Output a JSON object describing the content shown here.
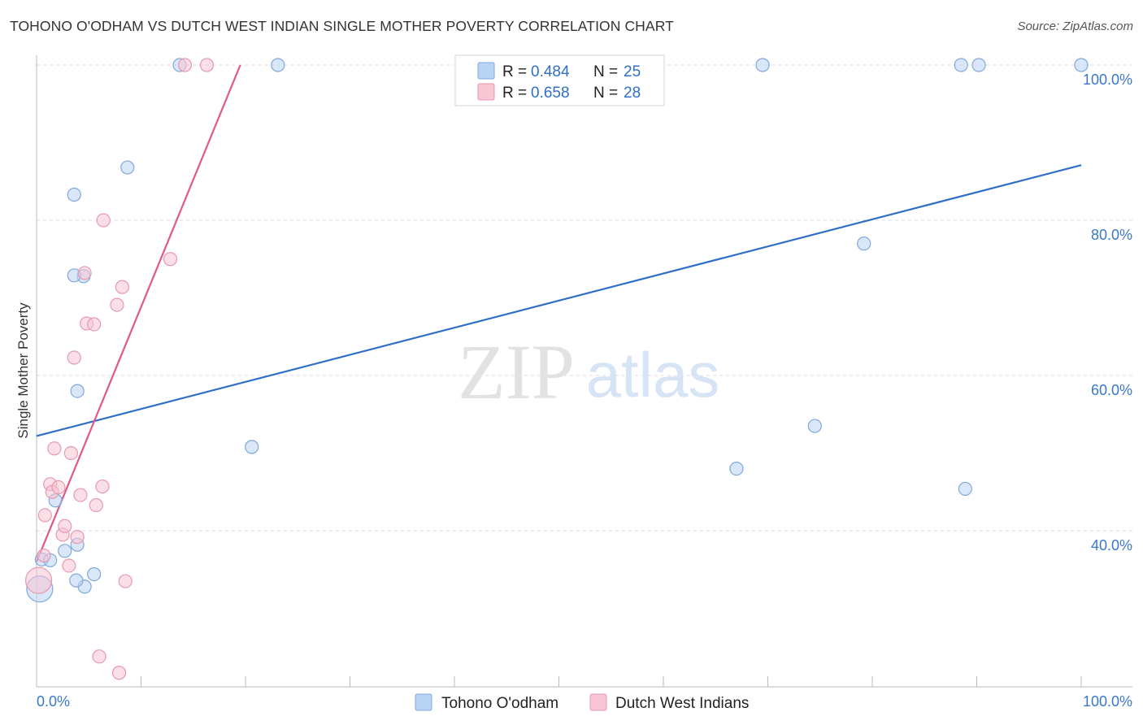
{
  "title": "TOHONO O'ODHAM VS DUTCH WEST INDIAN SINGLE MOTHER POVERTY CORRELATION CHART",
  "source": "Source: ZipAtlas.com",
  "watermark": {
    "zip": "ZIP",
    "atlas": "atlas"
  },
  "colors": {
    "blue_fill": "#b9d3f3",
    "blue_stroke": "#7fa8dc",
    "blue_line": "#2f6fc5",
    "pink_fill": "#f7c5d3",
    "pink_stroke": "#e799b0",
    "pink_line": "#e0588a",
    "grid": "#dddddd",
    "axis": "#bbbbbb",
    "tick_text": "#3a78c8"
  },
  "chart_data": {
    "type": "scatter",
    "title": "TOHONO O'ODHAM VS DUTCH WEST INDIAN SINGLE MOTHER POVERTY CORRELATION CHART",
    "xlabel": "",
    "ylabel": "Single Mother Poverty",
    "xlim": [
      0,
      100
    ],
    "ylim": [
      20,
      102
    ],
    "x_tick_labels": [
      "0.0%",
      "100.0%"
    ],
    "y_ticks": [
      40,
      60,
      80,
      100
    ],
    "y_tick_labels": [
      "40.0%",
      "60.0%",
      "80.0%",
      "100.0%"
    ],
    "legend": [
      {
        "name": "Tohono O'odham",
        "r_label": "R =",
        "r": "0.484",
        "n_label": "N =",
        "n": "25"
      },
      {
        "name": "Dutch West Indians",
        "r_label": "R =",
        "r": "0.658",
        "n_label": "N =",
        "n": "28"
      }
    ],
    "series": [
      {
        "name": "Tohono O'odham",
        "color": "blue",
        "points": [
          [
            0.3,
            32.5,
            2
          ],
          [
            0.5,
            36.3,
            1
          ],
          [
            1.3,
            36.2,
            1
          ],
          [
            2.7,
            37.4,
            1
          ],
          [
            1.8,
            43.9,
            1
          ],
          [
            3.9,
            38.2,
            1
          ],
          [
            4.6,
            32.8,
            1
          ],
          [
            4.5,
            72.8,
            1
          ],
          [
            3.8,
            33.6,
            1
          ],
          [
            5.5,
            34.4,
            1
          ],
          [
            3.6,
            72.9,
            1
          ],
          [
            3.9,
            58.0,
            1
          ],
          [
            3.6,
            83.3,
            1
          ],
          [
            8.7,
            86.8,
            1
          ],
          [
            13.7,
            100.0,
            1
          ],
          [
            23.1,
            100.0,
            1
          ],
          [
            20.6,
            50.8,
            1
          ],
          [
            69.5,
            100.0,
            1
          ],
          [
            67.0,
            48.0,
            1
          ],
          [
            74.5,
            53.5,
            1
          ],
          [
            79.2,
            77.0,
            1
          ],
          [
            88.5,
            100.0,
            1
          ],
          [
            88.9,
            45.4,
            1
          ],
          [
            90.2,
            100.0,
            1
          ],
          [
            100.0,
            100.0,
            1
          ]
        ],
        "trend": {
          "x0": 0,
          "y0": 52.2,
          "x1": 100,
          "y1": 87.1
        }
      },
      {
        "name": "Dutch West Indians",
        "color": "pink",
        "points": [
          [
            0.2,
            33.6,
            2
          ],
          [
            0.7,
            36.8,
            1
          ],
          [
            0.8,
            42.0,
            1
          ],
          [
            1.3,
            46.0,
            1
          ],
          [
            1.5,
            45.0,
            1
          ],
          [
            1.7,
            50.6,
            1
          ],
          [
            2.1,
            45.6,
            1
          ],
          [
            2.5,
            39.5,
            1
          ],
          [
            2.7,
            40.6,
            1
          ],
          [
            3.1,
            35.5,
            1
          ],
          [
            3.3,
            50.0,
            1
          ],
          [
            3.6,
            62.3,
            1
          ],
          [
            3.9,
            39.2,
            1
          ],
          [
            4.2,
            44.6,
            1
          ],
          [
            4.6,
            73.2,
            1
          ],
          [
            4.8,
            66.7,
            1
          ],
          [
            5.5,
            66.6,
            1
          ],
          [
            5.7,
            43.3,
            1
          ],
          [
            6.3,
            45.7,
            1
          ],
          [
            6.4,
            80.0,
            1
          ],
          [
            7.7,
            69.1,
            1
          ],
          [
            8.2,
            71.4,
            1
          ],
          [
            8.5,
            33.5,
            1
          ],
          [
            6.0,
            23.8,
            1
          ],
          [
            7.9,
            21.7,
            1
          ],
          [
            12.8,
            75.0,
            1
          ],
          [
            14.2,
            100.0,
            1
          ],
          [
            16.3,
            100.0,
            1
          ]
        ],
        "trend": {
          "x0": 0,
          "y0": 36.0,
          "x1": 19.5,
          "y1": 100.0
        }
      }
    ]
  }
}
